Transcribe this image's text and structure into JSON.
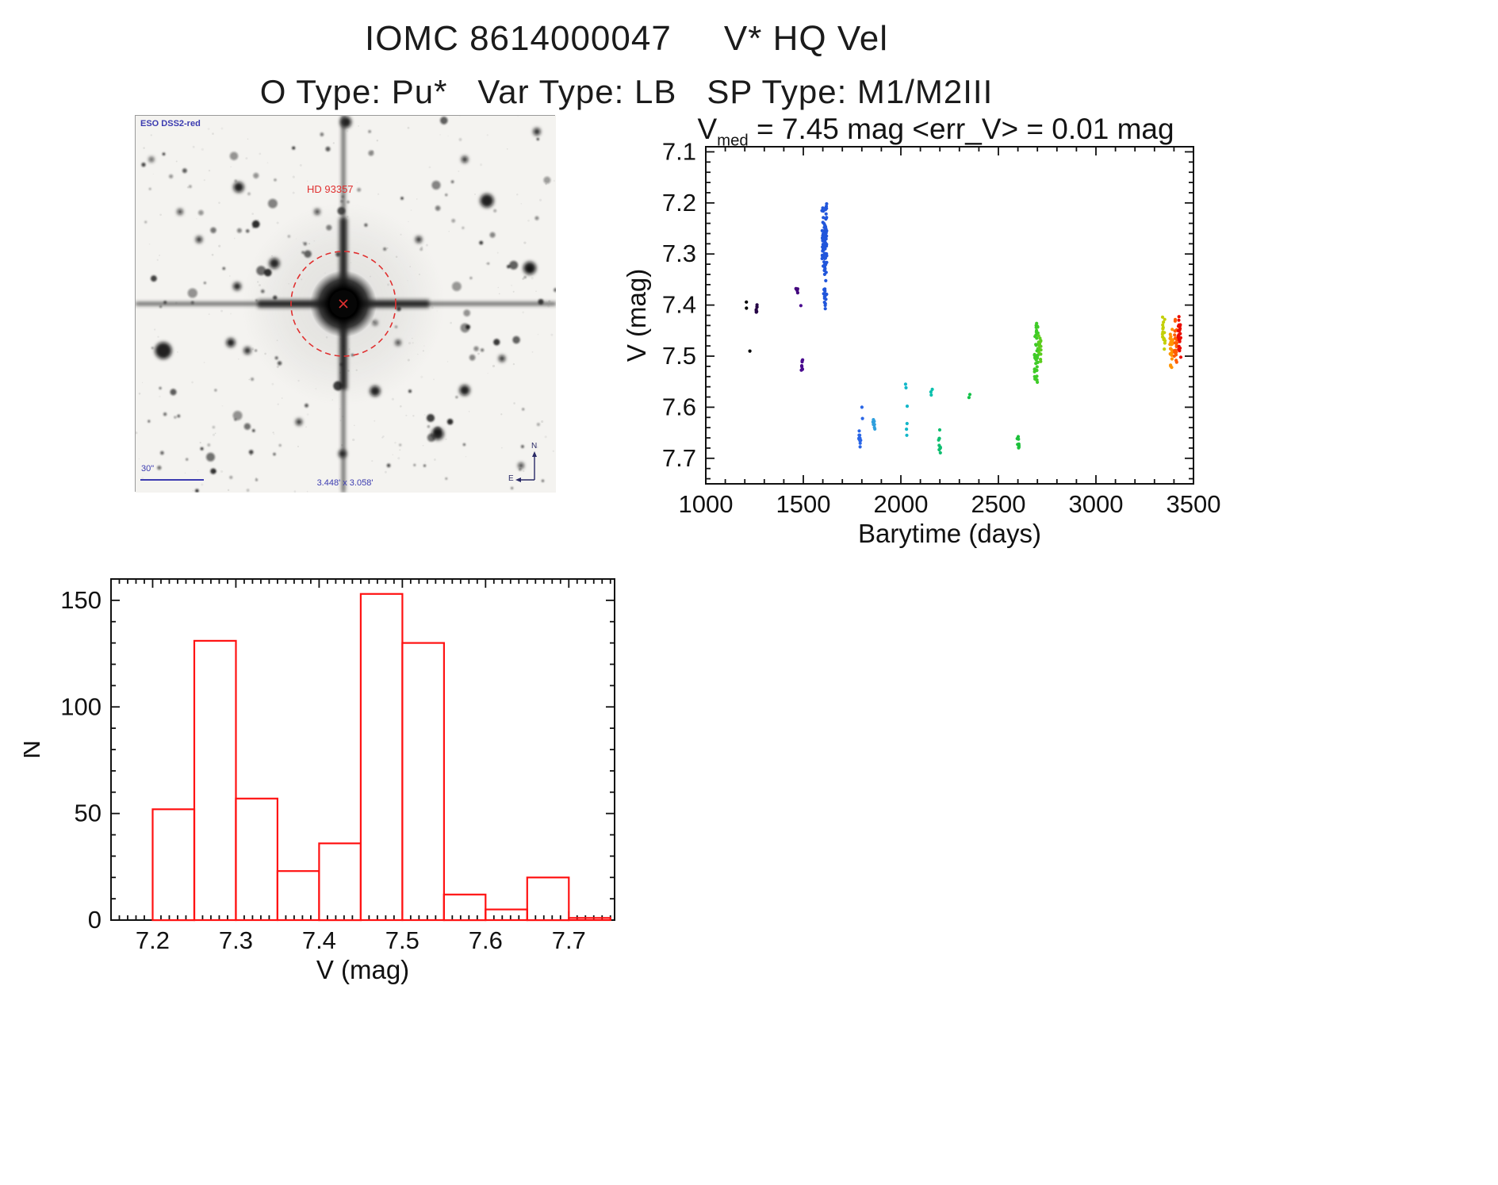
{
  "page": {
    "title": "IOMC 8614000047     V* HQ Vel",
    "subtitle": "O Type: Pu*   Var Type: LB   SP Type: M1/M2III"
  },
  "finding_chart": {
    "survey_label": "ESO DSS2-red",
    "star_label": "HD 93357",
    "scale_label": "30\"",
    "fov_label": "3.448' x 3.058'",
    "compass_north": "N",
    "compass_east": "E",
    "annotation_color": "#e03030",
    "caption_color": "#3b3bb0"
  },
  "chart_data": [
    {
      "type": "scatter",
      "name": "light_curve",
      "title": "V_med = 7.45 mag <err_V> = 0.01 mag",
      "title_v": "V",
      "title_sub": "med",
      "title_rest": " = 7.45 mag <err_V> = 0.01 mag",
      "xlabel": "Barytime (days)",
      "ylabel": "V (mag)",
      "xlim": [
        1000,
        3500
      ],
      "ylim": [
        7.09,
        7.75
      ],
      "y_axis_inverted": true,
      "xticks": [
        1000,
        1500,
        2000,
        2500,
        3000,
        3500
      ],
      "yticks": [
        7.1,
        7.2,
        7.3,
        7.4,
        7.5,
        7.6,
        7.7
      ],
      "x_minor_step": 100,
      "y_minor_step": 0.02,
      "clusters": [
        {
          "x": 1212,
          "jitter": 4,
          "color": "#000000",
          "y_values": [
            7.394,
            7.406
          ]
        },
        {
          "x": 1224,
          "jitter": 2,
          "color": "#000000",
          "y_values": [
            7.49
          ]
        },
        {
          "x": 1262,
          "jitter": 5,
          "color": "#250345",
          "y_min": 7.392,
          "y_max": 7.426,
          "n": 8
        },
        {
          "x": 1467,
          "jitter": 5,
          "color": "#43067e",
          "y_min": 7.36,
          "y_max": 7.38,
          "n": 5
        },
        {
          "x": 1490,
          "jitter": 3,
          "color": "#4a0b8f",
          "y_values": [
            7.401
          ]
        },
        {
          "x": 1493,
          "jitter": 4,
          "color": "#4a0b8f",
          "y_min": 7.503,
          "y_max": 7.534,
          "n": 8
        },
        {
          "x": 1608,
          "jitter": 13,
          "color": "#2156db",
          "y_min": 7.197,
          "y_max": 7.345,
          "n": 95
        },
        {
          "x": 1612,
          "jitter": 8,
          "color": "#2156db",
          "y_min": 7.345,
          "y_max": 7.412,
          "n": 16
        },
        {
          "x": 1789,
          "jitter": 6,
          "color": "#2a66e6",
          "y_min": 7.636,
          "y_max": 7.684,
          "n": 10
        },
        {
          "x": 1802,
          "jitter": 3,
          "color": "#2a66e6",
          "y_values": [
            7.6,
            7.622
          ]
        },
        {
          "x": 1862,
          "jitter": 5,
          "color": "#2e9fdd",
          "y_min": 7.616,
          "y_max": 7.652,
          "n": 8
        },
        {
          "x": 2028,
          "jitter": 5,
          "color": "#12b7c9",
          "y_values": [
            7.555,
            7.562,
            7.598,
            7.632,
            7.643,
            7.655
          ]
        },
        {
          "x": 2158,
          "jitter": 4,
          "color": "#0bc0ad",
          "y_values": [
            7.565,
            7.57,
            7.576
          ]
        },
        {
          "x": 2198,
          "jitter": 5,
          "color": "#0fbe70",
          "y_min": 7.644,
          "y_max": 7.7,
          "n": 10
        },
        {
          "x": 2352,
          "jitter": 3,
          "color": "#15c24a",
          "y_values": [
            7.575,
            7.581
          ]
        },
        {
          "x": 2601,
          "jitter": 5,
          "color": "#1cc03a",
          "y_min": 7.652,
          "y_max": 7.688,
          "n": 8
        },
        {
          "x": 2694,
          "jitter": 10,
          "color": "#3ecb27",
          "y_min": 7.42,
          "y_max": 7.566,
          "n": 45
        },
        {
          "x": 2712,
          "jitter": 6,
          "color": "#5ccd1d",
          "y_min": 7.438,
          "y_max": 7.532,
          "n": 14
        },
        {
          "x": 3348,
          "jitter": 7,
          "color": "#c3cf06",
          "y_min": 7.407,
          "y_max": 7.502,
          "n": 16
        },
        {
          "x": 3386,
          "jitter": 8,
          "color": "#ff9400",
          "y_min": 7.428,
          "y_max": 7.533,
          "n": 24
        },
        {
          "x": 3408,
          "jitter": 7,
          "color": "#ff5c00",
          "y_min": 7.418,
          "y_max": 7.521,
          "n": 24
        },
        {
          "x": 3428,
          "jitter": 7,
          "color": "#ea0d00",
          "y_min": 7.404,
          "y_max": 7.512,
          "n": 28
        }
      ]
    },
    {
      "type": "bar",
      "name": "v_magnitude_histogram",
      "xlabel": "V (mag)",
      "ylabel": "N",
      "bin_start": 7.2,
      "bin_width": 0.05,
      "values": [
        52,
        131,
        57,
        23,
        36,
        153,
        130,
        12,
        5,
        20,
        1
      ],
      "xticks": [
        7.2,
        7.3,
        7.4,
        7.5,
        7.6,
        7.7
      ],
      "yticks": [
        0,
        50,
        100,
        150
      ],
      "xlim": [
        7.15,
        7.755
      ],
      "ylim": [
        0,
        160
      ],
      "x_minor_step": 0.01,
      "y_minor_step": 10,
      "bar_color": "#ff1212"
    }
  ]
}
